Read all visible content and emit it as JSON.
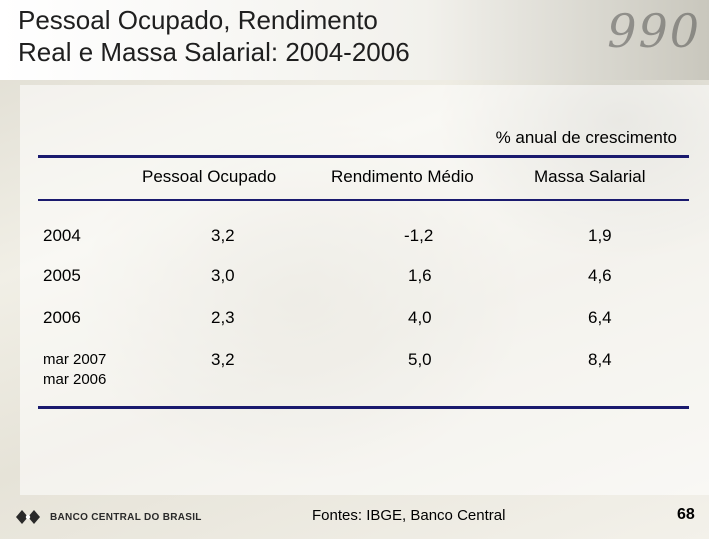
{
  "slide": {
    "title_line1": "Pessoal Ocupado, Rendimento",
    "title_line2": "Real e Massa Salarial: 2004-2006",
    "subtitle": "% anual de crescimento",
    "columns": [
      "Pessoal Ocupado",
      "Rendimento Médio",
      "Massa Salarial"
    ],
    "rows": [
      {
        "label": "2004",
        "label2": "",
        "values": [
          "3,2",
          "-1,2",
          "1,9"
        ]
      },
      {
        "label": "2005",
        "label2": "",
        "values": [
          "3,0",
          "1,6",
          "4,6"
        ]
      },
      {
        "label": "2006",
        "label2": "",
        "values": [
          "2,3",
          "4,0",
          "6,4"
        ]
      },
      {
        "label": "mar 2007",
        "label2": "mar 2006",
        "values": [
          "3,2",
          "5,0",
          "8,4"
        ]
      }
    ],
    "source": "Fontes: IBGE, Banco Central",
    "logo_text": "BANCO CENTRAL DO BRASIL",
    "page_number": "68",
    "background_digits": "990",
    "colors": {
      "rule": "#1a1a6e",
      "text": "#000000"
    }
  }
}
